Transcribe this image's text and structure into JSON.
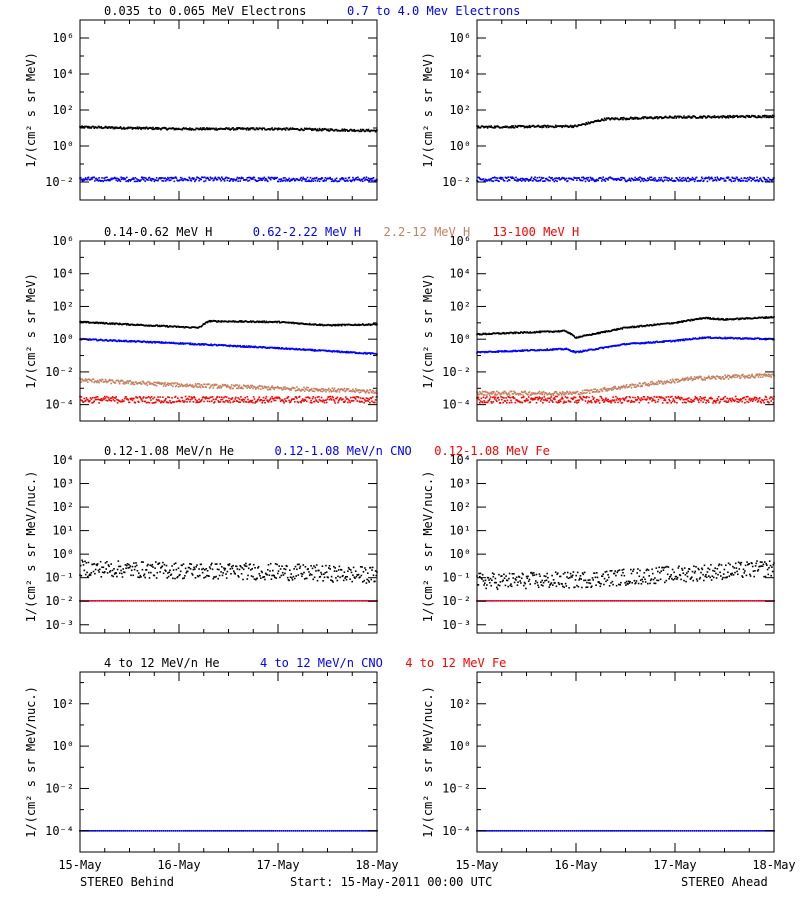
{
  "colors": {
    "black": "#000000",
    "blue": "#0000ff",
    "tan": "#c48060",
    "red": "#ff0000"
  },
  "footer": {
    "left": "STEREO Behind",
    "center": "Start: 15-May-2011 00:00 UTC",
    "right": "STEREO Ahead"
  },
  "x_ticks": [
    "15-May",
    "16-May",
    "17-May",
    "18-May"
  ],
  "chart_data": [
    {
      "type": "scatter",
      "row": 1,
      "side": "behind",
      "ylabel": "1/(cm² s sr MeV)",
      "ylog": true,
      "ylim_exp": [
        -3,
        7
      ],
      "ytick_exps": [
        -2,
        0,
        2,
        4,
        6
      ],
      "legend": [
        {
          "name": "0.035 to 0.065 MeV Electrons",
          "color": "#000000"
        },
        {
          "name": "0.7 to 4.0 Mev Electrons",
          "color": "#0000ff"
        }
      ],
      "series": [
        {
          "name": "0.035 to 0.065 MeV Electrons",
          "color": "#000000",
          "day": [
            0,
            1,
            2,
            3
          ],
          "log10": [
            1.05,
            0.95,
            0.95,
            0.85
          ],
          "spread": 0.06
        },
        {
          "name": "0.7 to 4.0 Mev Electrons",
          "color": "#0000ff",
          "day": [
            0,
            3
          ],
          "log10": [
            -1.85,
            -1.85
          ],
          "spread": 0.12
        }
      ]
    },
    {
      "type": "scatter",
      "row": 1,
      "side": "ahead",
      "ylabel": "1/(cm² s sr MeV)",
      "ylog": true,
      "ylim_exp": [
        -3,
        7
      ],
      "ytick_exps": [
        -2,
        0,
        2,
        4,
        6
      ],
      "series": [
        {
          "name": "0.035 to 0.065 MeV Electrons",
          "color": "#000000",
          "day": [
            0,
            1,
            1.3,
            2,
            3
          ],
          "log10": [
            1.05,
            1.1,
            1.5,
            1.6,
            1.65
          ],
          "spread": 0.06
        },
        {
          "name": "0.7 to 4.0 Mev Electrons",
          "color": "#0000ff",
          "day": [
            0,
            3
          ],
          "log10": [
            -1.85,
            -1.85
          ],
          "spread": 0.12
        }
      ]
    },
    {
      "type": "scatter",
      "row": 2,
      "side": "behind",
      "ylabel": "1/(cm² s sr MeV)",
      "ylog": true,
      "ylim_exp": [
        -5,
        6
      ],
      "ytick_exps": [
        -4,
        -2,
        0,
        2,
        4,
        6
      ],
      "legend": [
        {
          "name": "0.14-0.62 MeV H",
          "color": "#000000"
        },
        {
          "name": "0.62-2.22 MeV H",
          "color": "#0000ff"
        },
        {
          "name": "2.2-12 MeV H",
          "color": "#c48060"
        },
        {
          "name": "13-100 MeV H",
          "color": "#ff0000"
        }
      ],
      "series": [
        {
          "name": "0.14-0.62 MeV H",
          "color": "#000000",
          "day": [
            0,
            1,
            1.2,
            1.3,
            2,
            2.5,
            3
          ],
          "log10": [
            1.05,
            0.75,
            0.7,
            1.1,
            1.05,
            0.85,
            0.9
          ],
          "spread": 0.04
        },
        {
          "name": "0.62-2.22 MeV H",
          "color": "#0000ff",
          "day": [
            0,
            1,
            2,
            3
          ],
          "log10": [
            0.0,
            -0.25,
            -0.55,
            -0.9
          ],
          "spread": 0.04
        },
        {
          "name": "2.2-12 MeV H",
          "color": "#c48060",
          "day": [
            0,
            1,
            2,
            3
          ],
          "log10": [
            -2.5,
            -2.8,
            -3.0,
            -3.2
          ],
          "spread": 0.12
        },
        {
          "name": "13-100 MeV H",
          "color": "#ff0000",
          "day": [
            0,
            3
          ],
          "log10": [
            -3.7,
            -3.7
          ],
          "spread": 0.2
        }
      ]
    },
    {
      "type": "scatter",
      "row": 2,
      "side": "ahead",
      "ylabel": "1/(cm² s sr MeV)",
      "ylog": true,
      "ylim_exp": [
        -5,
        6
      ],
      "ytick_exps": [
        -4,
        -2,
        0,
        2,
        4,
        6
      ],
      "series": [
        {
          "name": "0.14-0.62 MeV H",
          "color": "#000000",
          "day": [
            0,
            0.9,
            1.0,
            1.5,
            2.0,
            2.3,
            2.5,
            3
          ],
          "log10": [
            0.3,
            0.5,
            0.1,
            0.7,
            1.0,
            1.3,
            1.2,
            1.35
          ],
          "spread": 0.04
        },
        {
          "name": "0.62-2.22 MeV H",
          "color": "#0000ff",
          "day": [
            0,
            0.9,
            1.0,
            1.5,
            2.0,
            2.3,
            3
          ],
          "log10": [
            -0.8,
            -0.6,
            -0.8,
            -0.3,
            -0.1,
            0.1,
            0.0
          ],
          "spread": 0.04
        },
        {
          "name": "2.2-12 MeV H",
          "color": "#c48060",
          "day": [
            0,
            1,
            1.5,
            2.2,
            3
          ],
          "log10": [
            -3.3,
            -3.3,
            -2.9,
            -2.4,
            -2.2
          ],
          "spread": 0.12
        },
        {
          "name": "13-100 MeV H",
          "color": "#ff0000",
          "day": [
            0,
            3
          ],
          "log10": [
            -3.7,
            -3.7
          ],
          "spread": 0.2
        }
      ]
    },
    {
      "type": "scatter",
      "row": 3,
      "side": "behind",
      "ylabel": "1/(cm² s sr MeV/nuc.)",
      "ylog": true,
      "ylim_exp": [
        -3.35,
        4
      ],
      "ytick_exps": [
        -3,
        -2,
        -1,
        0,
        1,
        2,
        3,
        4
      ],
      "legend": [
        {
          "name": "0.12-1.08 MeV/n He",
          "color": "#000000"
        },
        {
          "name": "0.12-1.08 MeV/n CNO",
          "color": "#0000ff"
        },
        {
          "name": "0.12-1.08 MeV Fe",
          "color": "#ff0000"
        }
      ],
      "series": [
        {
          "name": "0.12-1.08 MeV/n He",
          "color": "#000000",
          "day": [
            0,
            1,
            2,
            3
          ],
          "log10": [
            -0.6,
            -0.7,
            -0.75,
            -0.9
          ],
          "spread": 0.35
        },
        {
          "name": "0.12-1.08 MeV/n CNO",
          "color": "#0000ff",
          "day": [
            0,
            3
          ],
          "log10": [
            -1.98,
            -1.98
          ],
          "spread": 0.0
        },
        {
          "name": "0.12-1.08 MeV Fe",
          "color": "#ff0000",
          "day": [
            0,
            3
          ],
          "log10": [
            -1.98,
            -1.98
          ],
          "spread": 0.0
        }
      ]
    },
    {
      "type": "scatter",
      "row": 3,
      "side": "ahead",
      "ylabel": "1/(cm² s sr MeV/nuc.)",
      "ylog": true,
      "ylim_exp": [
        -3.35,
        4
      ],
      "ytick_exps": [
        -3,
        -2,
        -1,
        0,
        1,
        2,
        3,
        4
      ],
      "series": [
        {
          "name": "0.12-1.08 MeV/n He",
          "color": "#000000",
          "day": [
            0,
            1,
            2,
            3
          ],
          "log10": [
            -1.15,
            -1.1,
            -0.85,
            -0.6
          ],
          "spread": 0.35
        },
        {
          "name": "0.12-1.08 MeV/n CNO",
          "color": "#0000ff",
          "day": [
            0,
            3
          ],
          "log10": [
            -1.98,
            -1.98
          ],
          "spread": 0.0
        },
        {
          "name": "0.12-1.08 MeV Fe",
          "color": "#ff0000",
          "day": [
            0,
            3
          ],
          "log10": [
            -1.98,
            -1.98
          ],
          "spread": 0.0
        }
      ]
    },
    {
      "type": "scatter",
      "row": 4,
      "side": "behind",
      "ylabel": "1/(cm² s sr MeV/nuc.)",
      "ylog": true,
      "ylim_exp": [
        -5,
        3.5
      ],
      "ytick_exps": [
        -4,
        -2,
        0,
        2
      ],
      "legend": [
        {
          "name": "4 to 12 MeV/n He",
          "color": "#000000"
        },
        {
          "name": "4 to 12 MeV/n CNO",
          "color": "#0000ff"
        },
        {
          "name": "4 to 12 MeV Fe",
          "color": "#ff0000"
        }
      ],
      "series": [
        {
          "name": "4 to 12 MeV/n He",
          "color": "#000000",
          "day": [
            0,
            3
          ],
          "log10": [
            -4.0,
            -4.0
          ],
          "spread": 0.0
        },
        {
          "name": "4 to 12 MeV/n CNO",
          "color": "#0000ff",
          "day": [
            0,
            3
          ],
          "log10": [
            -4.0,
            -4.0
          ],
          "spread": 0.0
        }
      ]
    },
    {
      "type": "scatter",
      "row": 4,
      "side": "ahead",
      "ylabel": "1/(cm² s sr MeV/nuc.)",
      "ylog": true,
      "ylim_exp": [
        -5,
        3.5
      ],
      "ytick_exps": [
        -4,
        -2,
        0,
        2
      ],
      "series": [
        {
          "name": "4 to 12 MeV/n He",
          "color": "#000000",
          "day": [
            0,
            3
          ],
          "log10": [
            -4.0,
            -4.0
          ],
          "spread": 0.0
        },
        {
          "name": "4 to 12 MeV/n CNO",
          "color": "#0000ff",
          "day": [
            0,
            3
          ],
          "log10": [
            -4.0,
            -4.0
          ],
          "spread": 0.0
        }
      ]
    }
  ]
}
